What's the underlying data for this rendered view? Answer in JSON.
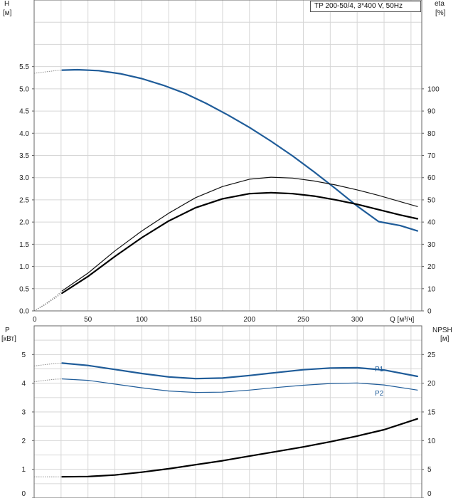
{
  "chart_data": [
    {
      "type": "line",
      "legend_text": "TP 200-50/4, 3*400 V, 50Hz",
      "legend_position": "top-right",
      "y_left_label": [
        "H",
        "[м]"
      ],
      "y_right_label": [
        "eta",
        "[%]"
      ],
      "x_label": "Q [м³/ч]",
      "xlim": [
        0,
        360
      ],
      "ylim_left": [
        0,
        7
      ],
      "ylim_right": [
        0,
        140
      ],
      "x_ticks": [
        "0",
        "50",
        "100",
        "150",
        "200",
        "250",
        "300"
      ],
      "y_left_ticks": [
        "0.0",
        "0.5",
        "1.0",
        "1.5",
        "2.0",
        "2.5",
        "3.0",
        "3.5",
        "4.0",
        "4.5",
        "5.0",
        "5.5"
      ],
      "y_right_ticks": [
        "0",
        "10",
        "20",
        "30",
        "40",
        "50",
        "60",
        "70",
        "80",
        "90",
        "100"
      ],
      "grid": true,
      "series": [
        {
          "role": "H",
          "axis": "left",
          "color": "#1f5c99",
          "dotted": {
            "x": [
              0,
              10,
              20,
              26
            ],
            "y": [
              5.35,
              5.38,
              5.41,
              5.42
            ]
          },
          "values": {
            "x": [
              26,
              40,
              60,
              80,
              100,
              120,
              140,
              160,
              180,
              200,
              220,
              240,
              260,
              280,
              300,
              320,
              340,
              356
            ],
            "y": [
              5.42,
              5.43,
              5.41,
              5.34,
              5.23,
              5.08,
              4.9,
              4.67,
              4.41,
              4.13,
              3.82,
              3.49,
              3.13,
              2.75,
              2.36,
              2.01,
              1.92,
              1.8
            ]
          }
        },
        {
          "role": "eta",
          "axis": "right",
          "color": "#111111",
          "weight": "thin",
          "dotted": {
            "x": [
              0,
              10,
              20,
              26
            ],
            "y": [
              0,
              3,
              6.5,
              9
            ]
          },
          "values": {
            "x": [
              26,
              50,
              75,
              100,
              125,
              150,
              175,
              200,
              220,
              240,
              260,
              280,
              300,
              320,
              340,
              356
            ],
            "y": [
              9,
              17,
              27,
              36,
              44,
              51,
              56,
              59.3,
              60.2,
              59.8,
              58.5,
              56.7,
              54.5,
              52.0,
              49.2,
              47
            ]
          }
        },
        {
          "role": "eta",
          "axis": "right",
          "color": "#000000",
          "weight": "thick",
          "dotted": {
            "x": [
              0,
              10,
              20,
              26
            ],
            "y": [
              0,
              2.7,
              6,
              8
            ]
          },
          "values": {
            "x": [
              26,
              50,
              75,
              100,
              125,
              150,
              175,
              200,
              220,
              240,
              260,
              280,
              300,
              320,
              340,
              356
            ],
            "y": [
              8,
              15.5,
              24.5,
              33,
              40.5,
              46.5,
              50.5,
              52.8,
              53.2,
              52.8,
              51.7,
              50.0,
              48.0,
              45.6,
              43.2,
              41.5
            ]
          }
        }
      ]
    },
    {
      "type": "line",
      "y_left_label": [
        "P",
        "[кВт]"
      ],
      "y_right_label": [
        "NPSH",
        "[м]"
      ],
      "xlim": [
        0,
        360
      ],
      "ylim_left": [
        0,
        6
      ],
      "ylim_right": [
        0,
        30
      ],
      "y_left_ticks": [
        "0",
        "1",
        "2",
        "3",
        "4",
        "5"
      ],
      "y_right_ticks": [
        "0",
        "5",
        "10",
        "15",
        "20",
        "25"
      ],
      "grid": true,
      "series": [
        {
          "name": "P1",
          "axis": "left",
          "color": "#1f5c99",
          "weight": "thick",
          "dotted": {
            "x": [
              0,
              10,
              20,
              26
            ],
            "y": [
              4.6,
              4.65,
              4.69,
              4.7
            ]
          },
          "values": {
            "x": [
              26,
              50,
              75,
              100,
              125,
              150,
              175,
              200,
              225,
              250,
              275,
              300,
              325,
              356
            ],
            "y": [
              4.7,
              4.62,
              4.48,
              4.34,
              4.22,
              4.16,
              4.18,
              4.27,
              4.37,
              4.47,
              4.53,
              4.54,
              4.46,
              4.24
            ]
          }
        },
        {
          "name": "P2",
          "axis": "left",
          "color": "#1f5c99",
          "weight": "thin",
          "dotted": {
            "x": [
              0,
              10,
              20,
              26
            ],
            "y": [
              4.05,
              4.1,
              4.14,
              4.15
            ]
          },
          "values": {
            "x": [
              26,
              50,
              75,
              100,
              125,
              150,
              175,
              200,
              225,
              250,
              275,
              300,
              325,
              356
            ],
            "y": [
              4.15,
              4.1,
              3.97,
              3.84,
              3.73,
              3.68,
              3.69,
              3.76,
              3.85,
              3.93,
              3.99,
              4.01,
              3.94,
              3.76
            ]
          }
        },
        {
          "role": "NPSH",
          "axis": "right",
          "color": "#000000",
          "weight": "thick",
          "dotted": {
            "x": [
              0,
              10,
              20,
              26
            ],
            "y": [
              3.7,
              3.7,
              3.7,
              3.7
            ]
          },
          "values": {
            "x": [
              26,
              50,
              75,
              100,
              125,
              150,
              175,
              200,
              225,
              250,
              275,
              300,
              325,
              356
            ],
            "y": [
              3.7,
              3.75,
              4.0,
              4.5,
              5.1,
              5.8,
              6.5,
              7.3,
              8.1,
              8.9,
              9.8,
              10.8,
              11.9,
              13.8
            ]
          }
        }
      ]
    }
  ]
}
